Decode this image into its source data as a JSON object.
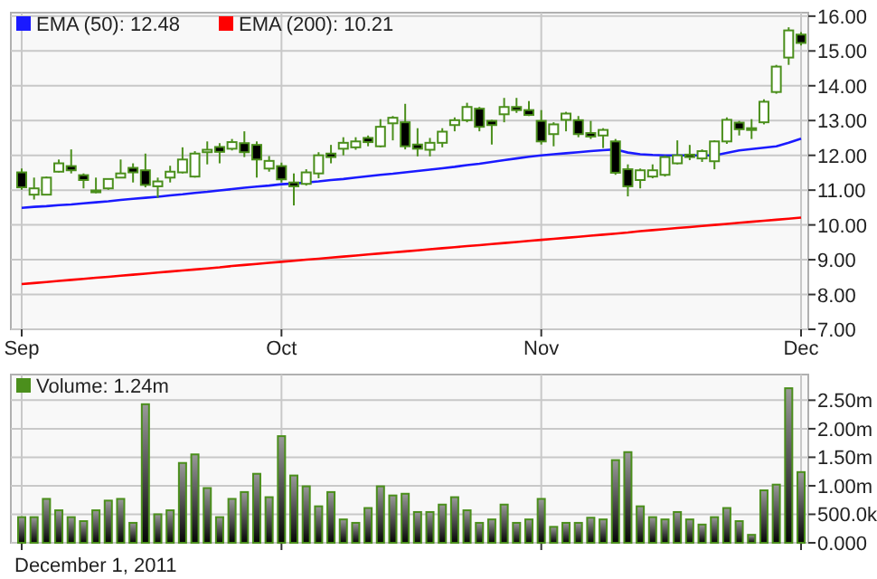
{
  "chart_data": [
    {
      "type": "candlestick",
      "categories": [
        "Sep",
        null,
        null,
        null,
        null,
        null,
        null,
        null,
        null,
        null,
        null,
        null,
        null,
        null,
        null,
        null,
        null,
        null,
        null,
        null,
        null,
        "Oct",
        null,
        null,
        null,
        null,
        null,
        null,
        null,
        null,
        null,
        null,
        null,
        null,
        null,
        null,
        null,
        null,
        null,
        null,
        null,
        null,
        "Nov",
        null,
        null,
        null,
        null,
        null,
        null,
        null,
        null,
        null,
        null,
        null,
        null,
        null,
        null,
        null,
        null,
        null,
        null,
        null,
        null,
        "Dec"
      ],
      "ohlc": [
        [
          11.51,
          11.62,
          11.01,
          11.08
        ],
        [
          10.87,
          11.36,
          10.73,
          11.05
        ],
        [
          10.87,
          11.39,
          10.87,
          11.36
        ],
        [
          11.53,
          11.88,
          11.51,
          11.77
        ],
        [
          11.69,
          12.17,
          11.48,
          11.57
        ],
        [
          11.43,
          11.48,
          11.05,
          11.29
        ],
        [
          10.99,
          11.36,
          10.91,
          10.94
        ],
        [
          11.05,
          11.32,
          11.01,
          11.32
        ],
        [
          11.36,
          11.88,
          11.36,
          11.48
        ],
        [
          11.64,
          11.77,
          11.22,
          11.51
        ],
        [
          11.57,
          12.05,
          11.08,
          11.15
        ],
        [
          11.11,
          11.36,
          10.78,
          11.25
        ],
        [
          11.36,
          11.7,
          11.22,
          11.53
        ],
        [
          11.51,
          12.23,
          11.48,
          11.88
        ],
        [
          11.39,
          12.12,
          11.36,
          12.05
        ],
        [
          12.09,
          12.4,
          11.74,
          12.16
        ],
        [
          12.24,
          12.35,
          11.77,
          12.1
        ],
        [
          12.19,
          12.47,
          12.14,
          12.38
        ],
        [
          12.35,
          12.69,
          11.95,
          12.09
        ],
        [
          12.3,
          12.4,
          11.36,
          11.88
        ],
        [
          11.62,
          11.98,
          11.53,
          11.84
        ],
        [
          11.69,
          11.79,
          11.22,
          11.31
        ],
        [
          11.22,
          11.48,
          10.56,
          11.11
        ],
        [
          11.18,
          11.6,
          11.13,
          11.51
        ],
        [
          11.48,
          12.09,
          11.34,
          12.0
        ],
        [
          12.05,
          12.3,
          11.77,
          11.95
        ],
        [
          12.19,
          12.52,
          12.0,
          12.36
        ],
        [
          12.23,
          12.52,
          12.16,
          12.4
        ],
        [
          12.5,
          12.57,
          12.26,
          12.38
        ],
        [
          12.26,
          13.04,
          12.23,
          12.82
        ],
        [
          12.92,
          13.13,
          12.43,
          13.08
        ],
        [
          12.95,
          13.48,
          12.17,
          12.26
        ],
        [
          12.31,
          12.78,
          11.97,
          12.19
        ],
        [
          12.16,
          12.5,
          11.97,
          12.36
        ],
        [
          12.36,
          12.78,
          12.23,
          12.68
        ],
        [
          12.87,
          13.09,
          12.69,
          13.01
        ],
        [
          13.01,
          13.51,
          12.95,
          13.39
        ],
        [
          13.34,
          13.39,
          12.69,
          12.82
        ],
        [
          12.99,
          13.02,
          12.31,
          12.87
        ],
        [
          13.18,
          13.65,
          12.95,
          13.39
        ],
        [
          13.39,
          13.65,
          13.22,
          13.3
        ],
        [
          13.3,
          13.56,
          13.13,
          13.16
        ],
        [
          12.99,
          13.3,
          12.31,
          12.4
        ],
        [
          12.61,
          12.95,
          12.26,
          12.89
        ],
        [
          13.02,
          13.25,
          12.69,
          13.2
        ],
        [
          13.01,
          13.13,
          12.52,
          12.61
        ],
        [
          12.64,
          12.99,
          12.47,
          12.54
        ],
        [
          12.57,
          12.78,
          12.21,
          12.73
        ],
        [
          12.4,
          12.47,
          11.44,
          11.5
        ],
        [
          11.6,
          11.74,
          10.82,
          11.11
        ],
        [
          11.29,
          11.62,
          11.05,
          11.57
        ],
        [
          11.39,
          11.74,
          11.34,
          11.57
        ],
        [
          11.44,
          12.0,
          11.39,
          11.95
        ],
        [
          11.77,
          12.43,
          11.74,
          12.0
        ],
        [
          12.02,
          12.3,
          11.86,
          11.95
        ],
        [
          11.91,
          12.17,
          11.81,
          12.12
        ],
        [
          11.83,
          12.43,
          11.6,
          12.4
        ],
        [
          12.4,
          13.09,
          12.33,
          13.02
        ],
        [
          12.94,
          12.99,
          12.57,
          12.75
        ],
        [
          12.75,
          13.04,
          12.47,
          12.78
        ],
        [
          12.95,
          13.61,
          12.89,
          13.54
        ],
        [
          13.82,
          14.6,
          13.77,
          14.55
        ],
        [
          14.81,
          15.68,
          14.6,
          15.59
        ],
        [
          15.47,
          15.54,
          15.16,
          15.23
        ]
      ],
      "color": "#4b8f1c",
      "series": [
        {
          "type": "line",
          "name": "EMA (50): 12.48",
          "color": "#1a1aff",
          "values": [
            10.49,
            10.52,
            10.54,
            10.57,
            10.59,
            10.62,
            10.65,
            10.68,
            10.72,
            10.75,
            10.78,
            10.81,
            10.85,
            10.88,
            10.92,
            10.95,
            10.99,
            11.03,
            11.07,
            11.1,
            11.13,
            11.17,
            11.19,
            11.22,
            11.25,
            11.29,
            11.32,
            11.36,
            11.4,
            11.44,
            11.47,
            11.51,
            11.55,
            11.59,
            11.63,
            11.67,
            11.72,
            11.76,
            11.81,
            11.86,
            11.91,
            11.96,
            12.0,
            12.03,
            12.06,
            12.09,
            12.12,
            12.15,
            12.17,
            12.08,
            12.03,
            12.01,
            12.0,
            12.0,
            12.0,
            12.0,
            12.0,
            12.07,
            12.14,
            12.18,
            12.22,
            12.26,
            12.36,
            12.48
          ]
        },
        {
          "type": "line",
          "name": "EMA (200): 10.21",
          "color": "#ff0000",
          "values": [
            8.3,
            8.33,
            8.36,
            8.39,
            8.42,
            8.45,
            8.48,
            8.51,
            8.54,
            8.57,
            8.6,
            8.63,
            8.66,
            8.69,
            8.72,
            8.75,
            8.78,
            8.82,
            8.85,
            8.88,
            8.91,
            8.94,
            8.97,
            9.0,
            9.03,
            9.06,
            9.09,
            9.12,
            9.15,
            9.18,
            9.21,
            9.24,
            9.27,
            9.3,
            9.33,
            9.36,
            9.39,
            9.42,
            9.45,
            9.48,
            9.51,
            9.54,
            9.57,
            9.6,
            9.63,
            9.66,
            9.69,
            9.72,
            9.75,
            9.78,
            9.82,
            9.85,
            9.88,
            9.91,
            9.94,
            9.97,
            10.0,
            10.03,
            10.06,
            10.09,
            10.12,
            10.15,
            10.18,
            10.21
          ]
        }
      ],
      "ylim": [
        7,
        16.1
      ],
      "yticks": [
        {
          "value": 7,
          "label": "7.00"
        },
        {
          "value": 8,
          "label": "8.00"
        },
        {
          "value": 9,
          "label": "9.00"
        },
        {
          "value": 10,
          "label": "10.00"
        },
        {
          "value": 11,
          "label": "11.00"
        },
        {
          "value": 12,
          "label": "12.00"
        },
        {
          "value": 13,
          "label": "13.00"
        },
        {
          "value": 14,
          "label": "14.00"
        },
        {
          "value": 15,
          "label": "15.00"
        },
        {
          "value": 16,
          "label": "16.00"
        }
      ],
      "grid": true,
      "legend": "top left"
    },
    {
      "type": "bar",
      "categories": [
        null,
        null,
        null,
        null,
        null,
        null,
        null,
        null,
        null,
        null,
        null,
        null,
        null,
        null,
        null,
        null,
        null,
        null,
        null,
        null,
        null,
        null,
        null,
        null,
        null,
        null,
        null,
        null,
        null,
        null,
        null,
        null,
        null,
        null,
        null,
        null,
        null,
        null,
        null,
        null,
        null,
        null,
        null,
        null,
        null,
        null,
        null,
        null,
        null,
        null,
        null,
        null,
        null,
        null,
        null,
        null,
        null,
        null,
        null,
        null,
        null,
        null,
        null,
        null
      ],
      "series": [
        {
          "name": "Volume: 1.24m",
          "color": "#4b8f1c",
          "values": [
            450000,
            450000,
            770000,
            570000,
            450000,
            380000,
            570000,
            740000,
            770000,
            350000,
            2430000,
            500000,
            570000,
            1400000,
            1550000,
            960000,
            450000,
            770000,
            890000,
            1210000,
            800000,
            1870000,
            1180000,
            990000,
            640000,
            890000,
            410000,
            350000,
            610000,
            990000,
            830000,
            860000,
            540000,
            540000,
            670000,
            800000,
            570000,
            350000,
            410000,
            670000,
            350000,
            410000,
            770000,
            280000,
            350000,
            350000,
            440000,
            410000,
            1450000,
            1590000,
            640000,
            450000,
            410000,
            540000,
            410000,
            320000,
            450000,
            610000,
            380000,
            140000,
            920000,
            1020000,
            2710000,
            1240000
          ]
        }
      ],
      "ylim": [
        0,
        2950000
      ],
      "yticks": [
        {
          "value": 0,
          "label": "0.000"
        },
        {
          "value": 500000,
          "label": "500.0k"
        },
        {
          "value": 1000000,
          "label": "1.00m"
        },
        {
          "value": 1500000,
          "label": "1.50m"
        },
        {
          "value": 2000000,
          "label": "2.00m"
        },
        {
          "value": 2500000,
          "label": "2.50m"
        }
      ],
      "grid": true,
      "legend": "top left",
      "tick_labels": "y",
      "annotations": [
        "December 1, 2011"
      ]
    }
  ]
}
